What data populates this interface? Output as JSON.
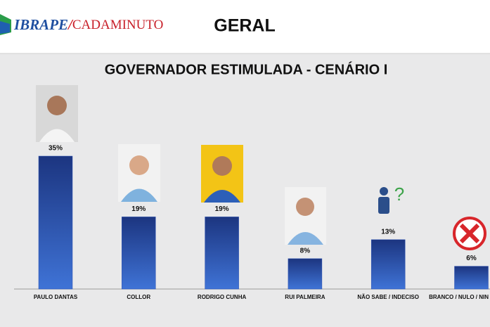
{
  "header": {
    "logo": [
      "IBRAPE",
      "/",
      "CADAMINUTO"
    ],
    "title": "GERAL"
  },
  "chart_data": {
    "type": "bar",
    "title": "GOVERNADOR ESTIMULADA - CENÁRIO I",
    "categories": [
      "PAULO DANTAS",
      "COLLOR",
      "RODRIGO CUNHA",
      "RUI PALMEIRA",
      "NÃO SABE / INDECISO",
      "BRANCO / NULO / NIN"
    ],
    "values": [
      35,
      19,
      19,
      8,
      13,
      6
    ],
    "value_labels": [
      "35%",
      "19%",
      "19%",
      "8%",
      "13%",
      "6%"
    ],
    "color": "#2c52b3"
  }
}
